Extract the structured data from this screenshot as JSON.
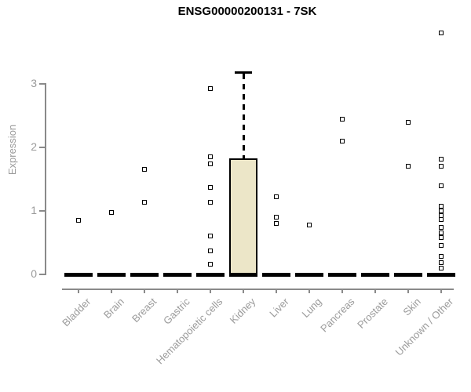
{
  "page": {
    "background": "#ffffff"
  },
  "chart_data": {
    "type": "boxplot",
    "title": "ENSG00000200131 - 7SK",
    "ylabel": "Expression",
    "xlabel": "",
    "ylim": [
      0,
      3.9
    ],
    "yticks": [
      "0",
      "1",
      "2",
      "3"
    ],
    "grid": false,
    "legend": false,
    "categories": [
      "Bladder",
      "Brain",
      "Breast",
      "Gastric",
      "Hematopoietic cells",
      "Kidney",
      "Liver",
      "Lung",
      "Pancreas",
      "Prostate",
      "Skin",
      "Unknown / Other"
    ],
    "medians": [
      0,
      0,
      0,
      0,
      0,
      0,
      0,
      0,
      0,
      0,
      0,
      0
    ],
    "box": {
      "category": "Kidney",
      "index": 5,
      "q1": 0,
      "median": 0.02,
      "q3": 1.83,
      "whisker_high": 3.18,
      "whisker_low": 0
    },
    "points": [
      [
        0.85
      ],
      [
        0.98
      ],
      [
        1.65,
        1.14
      ],
      [],
      [
        2.92,
        1.85,
        1.74,
        1.37,
        1.14,
        0.6,
        0.37,
        0.16
      ],
      [],
      [
        1.22,
        0.9,
        0.8
      ],
      [
        0.78
      ],
      [
        2.45,
        2.1
      ],
      [],
      [
        2.4,
        1.7
      ],
      [
        3.8,
        1.82,
        1.7,
        1.39,
        1.07,
        1.0,
        0.93,
        0.87,
        0.74,
        0.66,
        0.58,
        0.46,
        0.28,
        0.19,
        0.1
      ]
    ],
    "colors": {
      "box_fill": "#ece6c8",
      "box_border": "#000000",
      "point": "#000000",
      "axis": "#8a8a8a",
      "tick_text": "#9b9b9b",
      "title_text": "#000000"
    }
  }
}
